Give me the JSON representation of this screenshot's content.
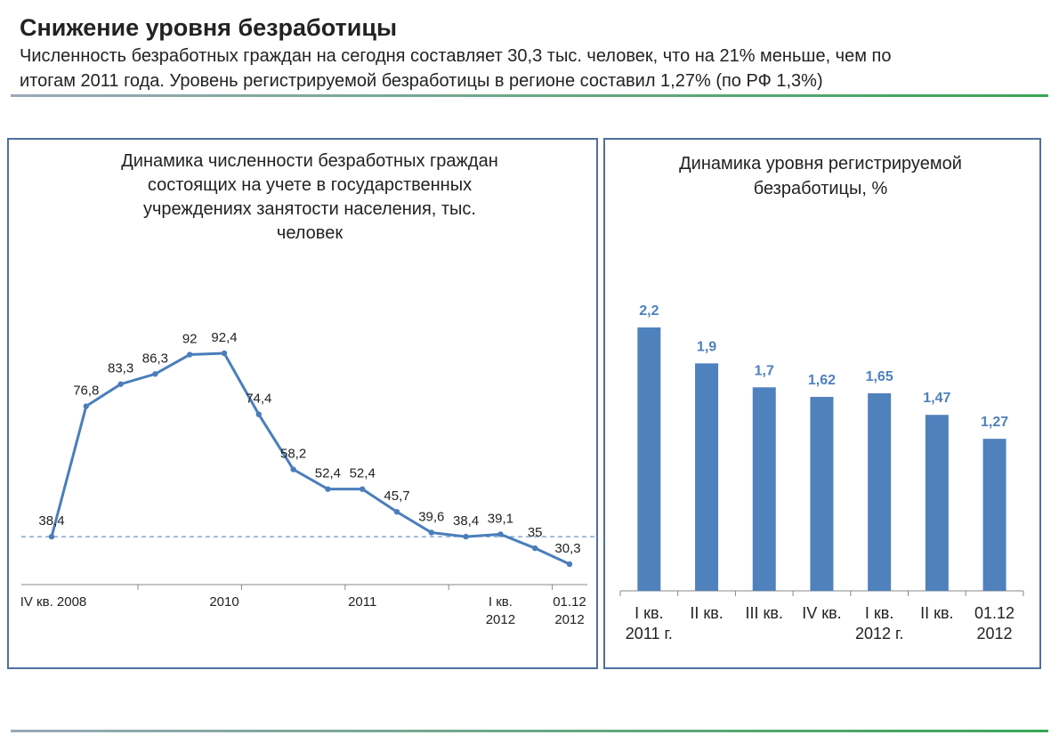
{
  "header": {
    "title": "Снижение уровня безработицы",
    "subtitle": [
      "Численность безработных граждан на сегодня составляет 30,3 тыс. человек, что на 21% меньше, чем по",
      "итогам 2011 года. Уровень регистрируемой безработицы в регионе составил 1,27% (по РФ 1,3%)"
    ]
  },
  "chart_data": [
    {
      "type": "line",
      "title": "Динамика численности безработных граждан\nсостоящих на учете в государственных\nучреждениях занятости населения, тыс.\nчеловек",
      "categories": [
        "IV кв. 2008",
        null,
        null,
        null,
        null,
        "2010",
        null,
        null,
        null,
        "2011",
        null,
        null,
        null,
        "I кв.\n2012",
        null,
        "01.12\n2012"
      ],
      "values": [
        38.4,
        76.8,
        83.3,
        86.3,
        92,
        92.4,
        74.4,
        58.2,
        52.4,
        52.4,
        45.7,
        39.6,
        38.4,
        39.1,
        35,
        30.3
      ],
      "value_labels": [
        "38,4",
        "76,8",
        "83,3",
        "86,3",
        "92",
        "92,4",
        "74,4",
        "58,2",
        "52,4",
        "52,4",
        "45,7",
        "39,6",
        "38,4",
        "39,1",
        "35",
        "30,3"
      ],
      "color": "#4a7ebb"
    },
    {
      "type": "bar",
      "title": "Динамика уровня регистрируемой\nбезработицы, %",
      "categories": [
        "I кв.\n2011 г.",
        "II кв.",
        "III кв.",
        "IV кв.",
        "I кв.\n2012 г.",
        "II кв.",
        "01.12\n2012"
      ],
      "values": [
        2.2,
        1.9,
        1.7,
        1.62,
        1.65,
        1.47,
        1.27
      ],
      "value_labels": [
        "2,2",
        "1,9",
        "1,7",
        "1,62",
        "1,65",
        "1,47",
        "1,27"
      ],
      "color": "#4f81bd"
    }
  ]
}
